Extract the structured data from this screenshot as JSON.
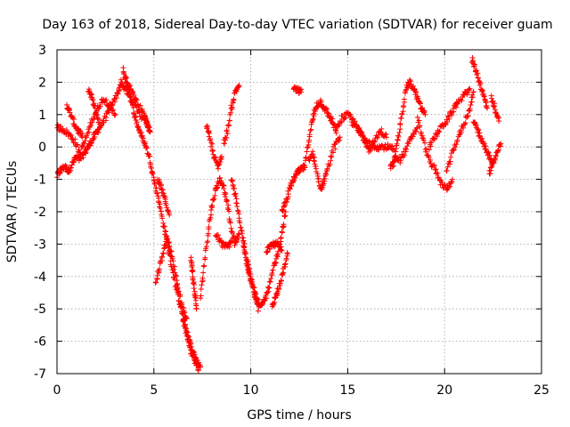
{
  "chart_data": {
    "type": "scatter",
    "title": "Day 163 of 2018, Sidereal Day-to-day VTEC variation (SDTVAR) for receiver guam",
    "xlabel": "GPS time / hours",
    "ylabel": "SDTVAR / TECUs",
    "xlim": [
      0,
      25
    ],
    "ylim": [
      -7,
      3
    ],
    "xticks": [
      0,
      5,
      10,
      15,
      20,
      25
    ],
    "yticks": [
      -7,
      -6,
      -5,
      -4,
      -3,
      -2,
      -1,
      0,
      1,
      2,
      3
    ],
    "grid": true,
    "marker": "+",
    "color": "#ff0000",
    "series": [
      {
        "name": "guam",
        "segments": [
          {
            "x": [
              0.0,
              0.2,
              0.4,
              0.6,
              0.8,
              1.0,
              1.2,
              1.4,
              1.6,
              1.8,
              2.0,
              2.2,
              2.5,
              2.8,
              3.1,
              3.3,
              3.5,
              3.8,
              4.1,
              4.4
            ],
            "y": [
              -0.9,
              -0.7,
              -0.6,
              -0.75,
              -0.5,
              -0.3,
              -0.4,
              -0.2,
              0.0,
              0.2,
              0.4,
              0.6,
              0.9,
              1.2,
              1.6,
              2.0,
              1.8,
              1.5,
              1.2,
              0.9
            ]
          },
          {
            "x": [
              0.0,
              0.3,
              0.6,
              0.9,
              1.2,
              1.5,
              1.8,
              2.1,
              2.4,
              2.7,
              3.0
            ],
            "y": [
              0.6,
              0.55,
              0.4,
              0.2,
              -0.2,
              0.3,
              0.8,
              1.2,
              1.5,
              1.3,
              1.0
            ]
          },
          {
            "x": [
              0.5,
              0.7,
              0.9,
              1.1,
              1.3
            ],
            "y": [
              1.3,
              1.0,
              0.7,
              0.5,
              0.3
            ]
          },
          {
            "x": [
              1.6,
              1.8,
              2.0,
              2.2
            ],
            "y": [
              1.8,
              1.5,
              1.1,
              0.7
            ]
          },
          {
            "x": [
              3.4,
              3.6,
              3.8,
              4.0,
              4.2,
              4.4,
              4.6,
              4.8,
              5.0,
              5.2,
              5.4,
              5.6,
              5.8,
              6.0,
              6.2,
              6.4,
              6.6,
              6.8,
              7.0,
              7.2,
              7.4
            ],
            "y": [
              2.4,
              2.0,
              1.5,
              1.0,
              0.6,
              0.3,
              0.0,
              -0.4,
              -1.0,
              -1.5,
              -2.1,
              -2.7,
              -3.3,
              -3.9,
              -4.5,
              -5.0,
              -5.5,
              -5.9,
              -6.3,
              -6.6,
              -6.8
            ]
          },
          {
            "x": [
              3.5,
              3.8,
              4.1,
              4.4,
              4.7
            ],
            "y": [
              2.1,
              1.8,
              1.4,
              1.1,
              0.6
            ]
          },
          {
            "x": [
              4.5,
              4.6,
              4.7,
              4.8
            ],
            "y": [
              1.0,
              0.8,
              0.6,
              0.5
            ]
          },
          {
            "x": [
              5.1,
              5.3,
              5.5,
              5.7,
              5.9,
              6.1,
              6.3,
              6.5,
              6.7
            ],
            "y": [
              -4.2,
              -3.7,
              -3.2,
              -2.8,
              -3.3,
              -3.9,
              -4.5,
              -5.0,
              -5.3
            ]
          },
          {
            "x": [
              5.2,
              5.4,
              5.6,
              5.8
            ],
            "y": [
              -1.0,
              -1.3,
              -1.7,
              -2.1
            ]
          },
          {
            "x": [
              6.5,
              6.7,
              6.9,
              7.1,
              7.3
            ],
            "y": [
              -5.3,
              -5.8,
              -6.3,
              -6.6,
              -6.9
            ]
          },
          {
            "x": [
              6.9,
              7.0,
              7.1,
              7.2
            ],
            "y": [
              -3.4,
              -3.9,
              -4.5,
              -5.0
            ]
          },
          {
            "x": [
              7.4,
              7.6,
              7.8,
              8.0,
              8.2,
              8.4,
              8.6,
              8.8,
              9.0,
              9.2,
              9.4
            ],
            "y": [
              -4.7,
              -3.6,
              -2.6,
              -1.8,
              -1.3,
              -1.0,
              -1.2,
              -1.8,
              -2.6,
              -3.0,
              -2.7
            ]
          },
          {
            "x": [
              7.7,
              7.9,
              8.1,
              8.3,
              8.5
            ],
            "y": [
              0.7,
              0.3,
              -0.3,
              -0.6,
              -0.3
            ]
          },
          {
            "x": [
              8.6,
              8.8,
              9.0,
              9.2,
              9.4
            ],
            "y": [
              0.1,
              0.5,
              1.2,
              1.7,
              1.9
            ]
          },
          {
            "x": [
              8.2,
              8.5,
              8.8,
              9.0
            ],
            "y": [
              -2.7,
              -3.0,
              -3.1,
              -2.9
            ]
          },
          {
            "x": [
              9.0,
              9.2,
              9.4,
              9.6,
              9.8,
              10.0,
              10.2,
              10.4,
              10.6
            ],
            "y": [
              -1.0,
              -1.5,
              -2.2,
              -2.8,
              -3.5,
              -4.0,
              -4.6,
              -5.0,
              -4.8
            ]
          },
          {
            "x": [
              9.6,
              9.8,
              10.0,
              10.2,
              10.4
            ],
            "y": [
              -3.0,
              -3.6,
              -4.1,
              -4.5,
              -4.8
            ]
          },
          {
            "x": [
              10.6,
              10.8,
              11.0,
              11.2,
              11.4,
              11.6,
              11.8
            ],
            "y": [
              -4.9,
              -4.6,
              -4.2,
              -3.7,
              -3.3,
              -2.7,
              -2.0
            ]
          },
          {
            "x": [
              10.8,
              11.0,
              11.2,
              11.4,
              11.6
            ],
            "y": [
              -3.2,
              -3.1,
              -3.0,
              -3.0,
              -3.2
            ]
          },
          {
            "x": [
              11.1,
              11.3,
              11.5,
              11.7,
              11.9
            ],
            "y": [
              -4.9,
              -4.6,
              -4.2,
              -3.8,
              -3.3
            ]
          },
          {
            "x": [
              11.6,
              11.8,
              12.0,
              12.2,
              12.4,
              12.6,
              12.8,
              13.0,
              13.2,
              13.4,
              13.6,
              13.8,
              14.0,
              14.2,
              14.4
            ],
            "y": [
              -2.0,
              -1.7,
              -1.3,
              -1.0,
              -0.8,
              -0.7,
              -0.6,
              0.3,
              0.9,
              1.3,
              1.4,
              1.2,
              1.0,
              0.8,
              0.5
            ]
          },
          {
            "x": [
              12.2,
              12.4,
              12.6
            ],
            "y": [
              1.8,
              1.75,
              1.7
            ]
          },
          {
            "x": [
              13.0,
              13.2,
              13.4,
              13.6,
              13.8,
              14.0,
              14.3,
              14.6
            ],
            "y": [
              -0.4,
              -0.2,
              -0.8,
              -1.3,
              -1.0,
              -0.6,
              0.0,
              0.3
            ]
          },
          {
            "x": [
              14.4,
              14.7,
              15.0,
              15.3,
              15.6,
              15.9,
              16.2,
              16.5,
              16.8,
              17.1,
              17.4
            ],
            "y": [
              0.5,
              0.9,
              1.0,
              0.8,
              0.5,
              0.2,
              0.1,
              0.0,
              0.0,
              0.0,
              -0.1
            ]
          },
          {
            "x": [
              15.2,
              15.5,
              15.8,
              16.1,
              16.4,
              16.7,
              17.0
            ],
            "y": [
              0.7,
              0.6,
              0.3,
              -0.1,
              0.2,
              0.5,
              0.3
            ]
          },
          {
            "x": [
              17.2,
              17.4,
              17.6,
              17.8,
              18.0,
              18.2,
              18.4,
              18.6,
              18.8,
              19.0
            ],
            "y": [
              -0.6,
              -0.5,
              0.2,
              1.0,
              1.8,
              2.0,
              1.8,
              1.5,
              1.2,
              1.0
            ]
          },
          {
            "x": [
              17.4,
              17.7,
              18.0,
              18.3,
              18.6
            ],
            "y": [
              -0.3,
              -0.4,
              -0.1,
              0.3,
              0.6
            ]
          },
          {
            "x": [
              18.6,
              18.9,
              19.2,
              19.5,
              19.8,
              20.1,
              20.4
            ],
            "y": [
              0.9,
              0.2,
              -0.4,
              -0.7,
              -1.1,
              -1.3,
              -1.0
            ]
          },
          {
            "x": [
              19.2,
              19.5,
              19.8,
              20.1,
              20.4,
              20.7,
              21.0,
              21.3
            ],
            "y": [
              0.0,
              0.3,
              0.6,
              0.8,
              1.1,
              1.4,
              1.6,
              1.8
            ]
          },
          {
            "x": [
              20.1,
              20.4,
              20.7,
              21.0,
              21.3,
              21.5
            ],
            "y": [
              -0.8,
              -0.2,
              0.3,
              0.7,
              1.2,
              1.7
            ]
          },
          {
            "x": [
              21.4,
              21.6,
              21.8,
              22.0,
              22.2
            ],
            "y": [
              2.7,
              2.4,
              2.0,
              1.6,
              1.2
            ]
          },
          {
            "x": [
              21.5,
              21.7,
              21.9,
              22.1,
              22.3,
              22.5
            ],
            "y": [
              0.8,
              0.5,
              0.2,
              0.0,
              -0.3,
              -0.5
            ]
          },
          {
            "x": [
              22.4,
              22.6,
              22.8
            ],
            "y": [
              1.5,
              1.2,
              0.8
            ]
          },
          {
            "x": [
              22.3,
              22.5,
              22.7,
              22.9
            ],
            "y": [
              -0.8,
              -0.5,
              -0.2,
              0.1
            ]
          }
        ]
      }
    ]
  }
}
